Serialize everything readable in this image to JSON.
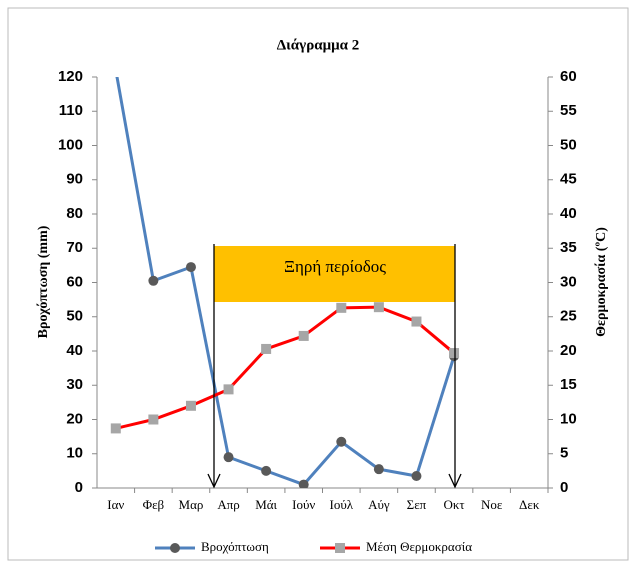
{
  "chart_data": {
    "type": "line",
    "title": "Διάγραμμα 2",
    "ylabel": "Βροχόπτωση (mm)",
    "y2label": "Θερμοκρασία (ºC)",
    "annotation": "Ξηρή περίοδος",
    "categories": [
      "Ιαν",
      "Φεβ",
      "Μαρ",
      "Απρ",
      "Μάι",
      "Ιούν",
      "Ιούλ",
      "Αύγ",
      "Σεπ",
      "Οκτ",
      "Νοε",
      "Δεκ"
    ],
    "series": [
      {
        "name": "Βροχόπτωση",
        "color": "#4f81bd",
        "marker_color": "#595959",
        "values": [
          122,
          60.5,
          64.5,
          9,
          5,
          1,
          13.5,
          5.5,
          3.5,
          38.5,
          null,
          null
        ]
      },
      {
        "name": "Μέση Θερμοκρασία",
        "color": "#ff0000",
        "marker_color": "#a6a6a6",
        "axis": "y2",
        "values": [
          8.7,
          10,
          12,
          14.4,
          20.3,
          22.2,
          26.3,
          26.4,
          24.3,
          19.7,
          null,
          null
        ]
      }
    ],
    "ylim": [
      0,
      120
    ],
    "yticks": [
      0,
      10,
      20,
      30,
      40,
      50,
      60,
      70,
      80,
      90,
      100,
      110,
      120
    ],
    "y2lim": [
      0,
      60
    ],
    "y2ticks": [
      0,
      5,
      10,
      15,
      20,
      25,
      30,
      35,
      40,
      45,
      50,
      55,
      60
    ],
    "legend": "bottom"
  }
}
